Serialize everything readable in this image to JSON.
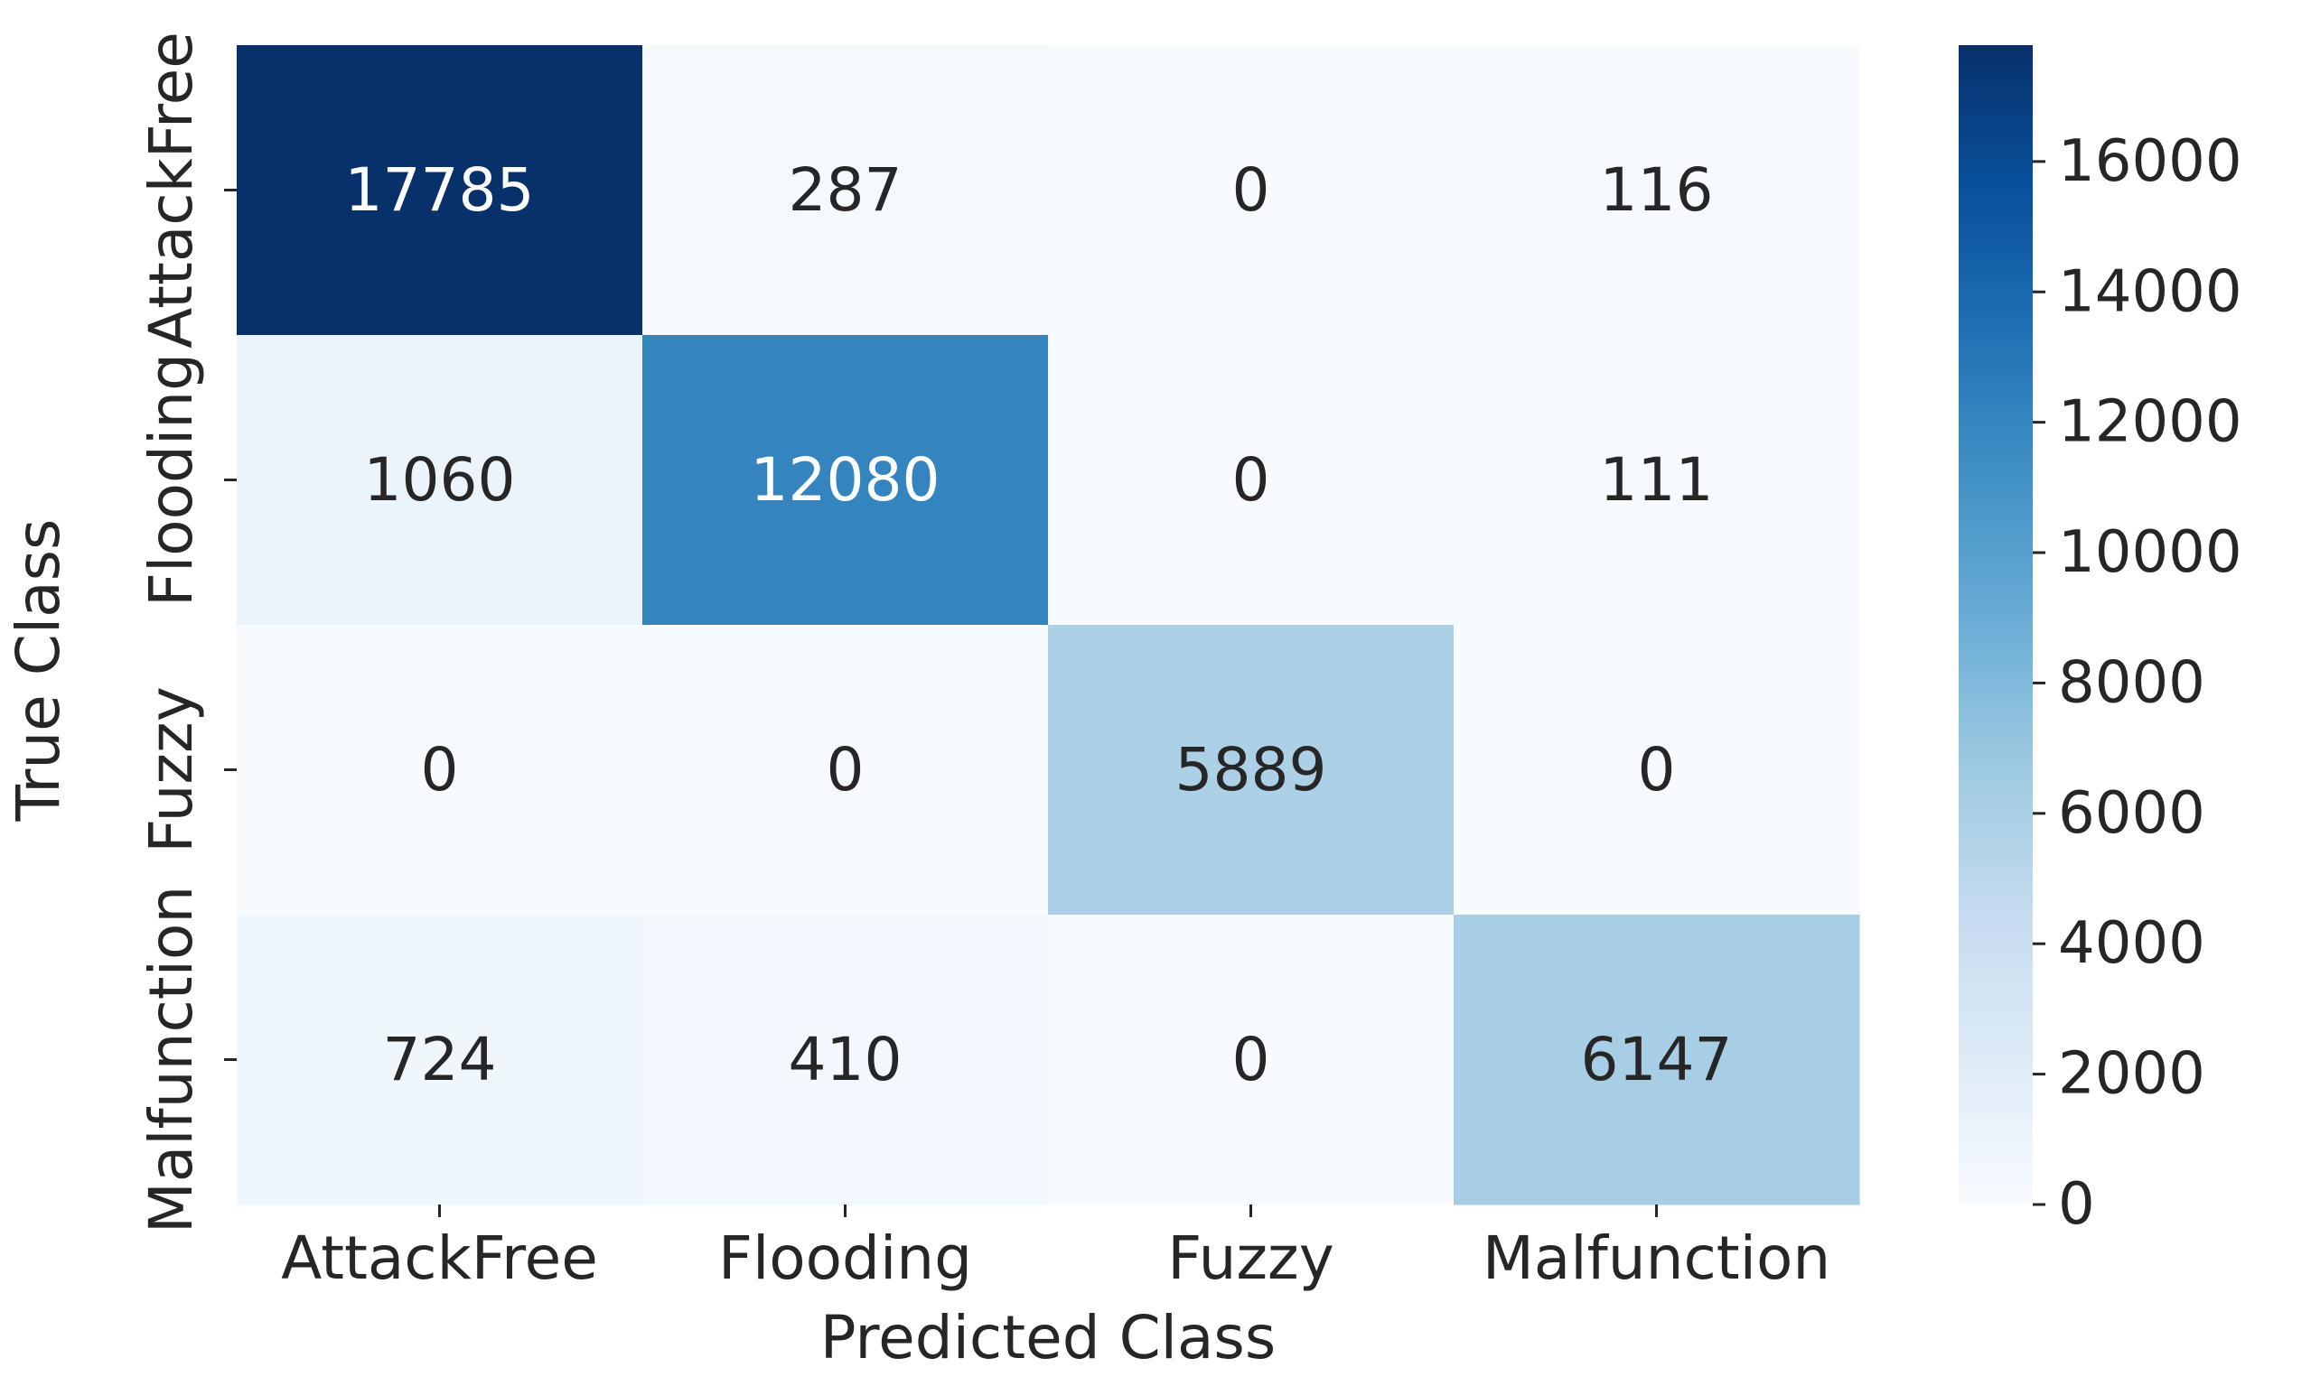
{
  "chart_data": {
    "type": "heatmap",
    "x_categories": [
      "AttackFree",
      "Flooding",
      "Fuzzy",
      "Malfunction"
    ],
    "y_categories": [
      "AttackFree",
      "Flooding",
      "Fuzzy",
      "Malfunction"
    ],
    "values": [
      [
        17785,
        287,
        0,
        116
      ],
      [
        1060,
        12080,
        0,
        111
      ],
      [
        0,
        0,
        5889,
        0
      ],
      [
        724,
        410,
        0,
        6147
      ]
    ],
    "xlabel": "Predicted Class",
    "ylabel": "True Class",
    "colorbar": {
      "min": 0,
      "max": 17785,
      "ticks": [
        0,
        2000,
        4000,
        6000,
        8000,
        10000,
        12000,
        14000,
        16000
      ],
      "colormap": "Blues"
    },
    "grid": false
  },
  "colors": {
    "low": "#f7fbff",
    "high": "#08306b",
    "text_dark": "#262626",
    "text_light": "#ffffff"
  }
}
